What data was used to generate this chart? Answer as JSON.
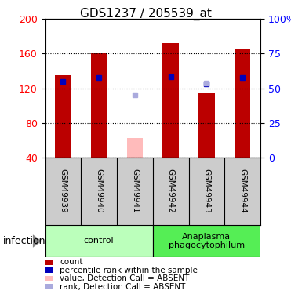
{
  "title": "GDS1237 / 205539_at",
  "samples": [
    "GSM49939",
    "GSM49940",
    "GSM49941",
    "GSM49942",
    "GSM49943",
    "GSM49944"
  ],
  "red_bar_heights": [
    135,
    160,
    0,
    172,
    115,
    165
  ],
  "red_bar_absent": [
    0,
    0,
    62,
    0,
    0,
    0
  ],
  "blue_square_y": [
    128,
    132,
    0,
    133,
    0,
    132
  ],
  "blue_square_absent_y": [
    0,
    0,
    112,
    0,
    126,
    0
  ],
  "blue_dark_y": [
    0,
    0,
    0,
    0,
    125,
    0
  ],
  "ylim_left": [
    40,
    200
  ],
  "yticks_left": [
    40,
    80,
    120,
    160,
    200
  ],
  "ytick_labels_right": [
    "0",
    "25",
    "50",
    "75",
    "100%"
  ],
  "groups": [
    {
      "label": "control",
      "samples_range": [
        0,
        3
      ],
      "color": "#bbffbb"
    },
    {
      "label": "Anaplasma\nphagocytophilum",
      "samples_range": [
        3,
        6
      ],
      "color": "#55ee55"
    }
  ],
  "group_label": "infection",
  "bg_color": "#ffffff",
  "bar_color": "#bb0000",
  "bar_absent_color": "#ffbbbb",
  "blue_color": "#0000bb",
  "blue_absent_color": "#aaaadd",
  "label_area_color": "#cccccc",
  "legend_items": [
    {
      "color": "#bb0000",
      "label": "count"
    },
    {
      "color": "#0000bb",
      "label": "percentile rank within the sample"
    },
    {
      "color": "#ffbbbb",
      "label": "value, Detection Call = ABSENT"
    },
    {
      "color": "#aaaadd",
      "label": "rank, Detection Call = ABSENT"
    }
  ]
}
